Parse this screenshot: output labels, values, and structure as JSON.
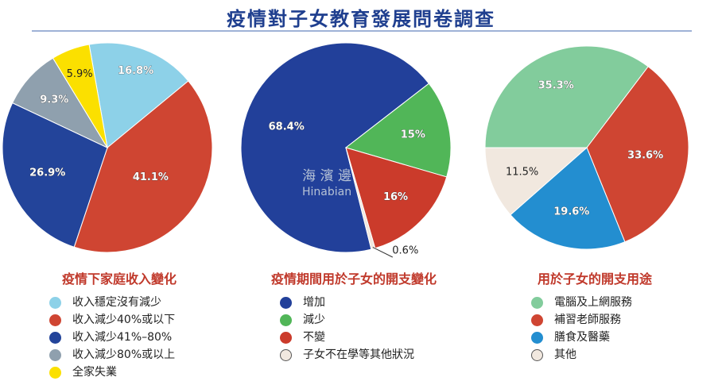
{
  "title": "疫情對子女教育發展問卷調查",
  "watermark": {
    "name": "海 濱 邊",
    "latin": "Hinabian"
  },
  "chart_data": [
    {
      "type": "pie",
      "title": "疫情下家庭收入變化",
      "slices": [
        {
          "label": "收入穩定沒有減少",
          "value": 16.8,
          "display": "16.8%",
          "color": "#8dd1e8"
        },
        {
          "label": "收入減少40%或以下",
          "value": 41.1,
          "display": "41.1%",
          "color": "#cf4532"
        },
        {
          "label": "收入減少41%–80%",
          "value": 26.9,
          "display": "26.9%",
          "color": "#23449a"
        },
        {
          "label": "收入減少80%或以上",
          "value": 9.3,
          "display": "9.3%",
          "color": "#8fa0ae"
        },
        {
          "label": "全家失業",
          "value": 5.9,
          "display": "5.9%",
          "color": "#fbe000"
        }
      ]
    },
    {
      "type": "pie",
      "title": "疫情期間用於子女的開支變化",
      "slices": [
        {
          "label": "增加",
          "value": 68.4,
          "display": "68.4%",
          "color": "#22409a"
        },
        {
          "label": "減少",
          "value": 15,
          "display": "15%",
          "color": "#51b658"
        },
        {
          "label": "不變",
          "value": 16,
          "display": "16%",
          "color": "#cb3b2b"
        },
        {
          "label": "子女不在學等其他狀況",
          "value": 0.6,
          "display": "0.6%",
          "color": "#f1e8df"
        }
      ]
    },
    {
      "type": "pie",
      "title": "用於子女的開支用途",
      "slices": [
        {
          "label": "電腦及上網服務",
          "value": 35.3,
          "display": "35.3%",
          "color": "#82cc9c"
        },
        {
          "label": "補習老師服務",
          "value": 33.6,
          "display": "33.6%",
          "color": "#cf4532"
        },
        {
          "label": "膳食及醫藥",
          "value": 19.6,
          "display": "19.6%",
          "color": "#238ed0"
        },
        {
          "label": "其他",
          "value": 11.5,
          "display": "11.5%",
          "color": "#f1e8df"
        }
      ]
    }
  ]
}
